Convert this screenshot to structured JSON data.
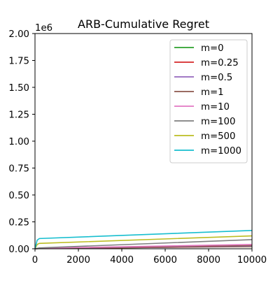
{
  "chart_data": {
    "type": "line",
    "title": "ARB-Cumulative Regret",
    "xlabel": "",
    "ylabel": "",
    "y_multiplier_label": "1e6",
    "xlim": [
      0,
      10000
    ],
    "ylim": [
      0,
      2000000
    ],
    "x_ticks": [
      0,
      2000,
      4000,
      6000,
      8000,
      10000
    ],
    "x_tick_labels": [
      "0",
      "2000",
      "4000",
      "6000",
      "8000",
      "10000"
    ],
    "y_ticks": [
      0,
      250000,
      500000,
      750000,
      1000000,
      1250000,
      1500000,
      1750000,
      2000000
    ],
    "y_tick_labels": [
      "0.00",
      "0.25",
      "0.50",
      "0.75",
      "1.00",
      "1.25",
      "1.50",
      "1.75",
      "2.00"
    ],
    "grid": false,
    "legend_position": "top-right",
    "series": [
      {
        "name": "m=0",
        "color": "#2ca02c",
        "x": [
          0,
          200,
          10000
        ],
        "y": [
          0,
          2000,
          20000
        ]
      },
      {
        "name": "m=0.25",
        "color": "#d62728",
        "x": [
          0,
          200,
          10000
        ],
        "y": [
          0,
          2500,
          22000
        ]
      },
      {
        "name": "m=0.5",
        "color": "#9467bd",
        "x": [
          0,
          200,
          10000
        ],
        "y": [
          0,
          3000,
          25000
        ]
      },
      {
        "name": "m=1",
        "color": "#8c564b",
        "x": [
          0,
          200,
          10000
        ],
        "y": [
          0,
          4000,
          30000
        ]
      },
      {
        "name": "m=10",
        "color": "#e377c2",
        "x": [
          0,
          200,
          10000
        ],
        "y": [
          0,
          5000,
          40000
        ]
      },
      {
        "name": "m=100",
        "color": "#7f7f7f",
        "x": [
          0,
          200,
          10000
        ],
        "y": [
          0,
          8000,
          85000
        ]
      },
      {
        "name": "m=500",
        "color": "#bcbd22",
        "x": [
          0,
          100,
          200,
          10000
        ],
        "y": [
          0,
          40000,
          50000,
          120000
        ]
      },
      {
        "name": "m=1000",
        "color": "#17becf",
        "x": [
          0,
          100,
          200,
          10000
        ],
        "y": [
          0,
          80000,
          95000,
          170000
        ]
      }
    ]
  }
}
